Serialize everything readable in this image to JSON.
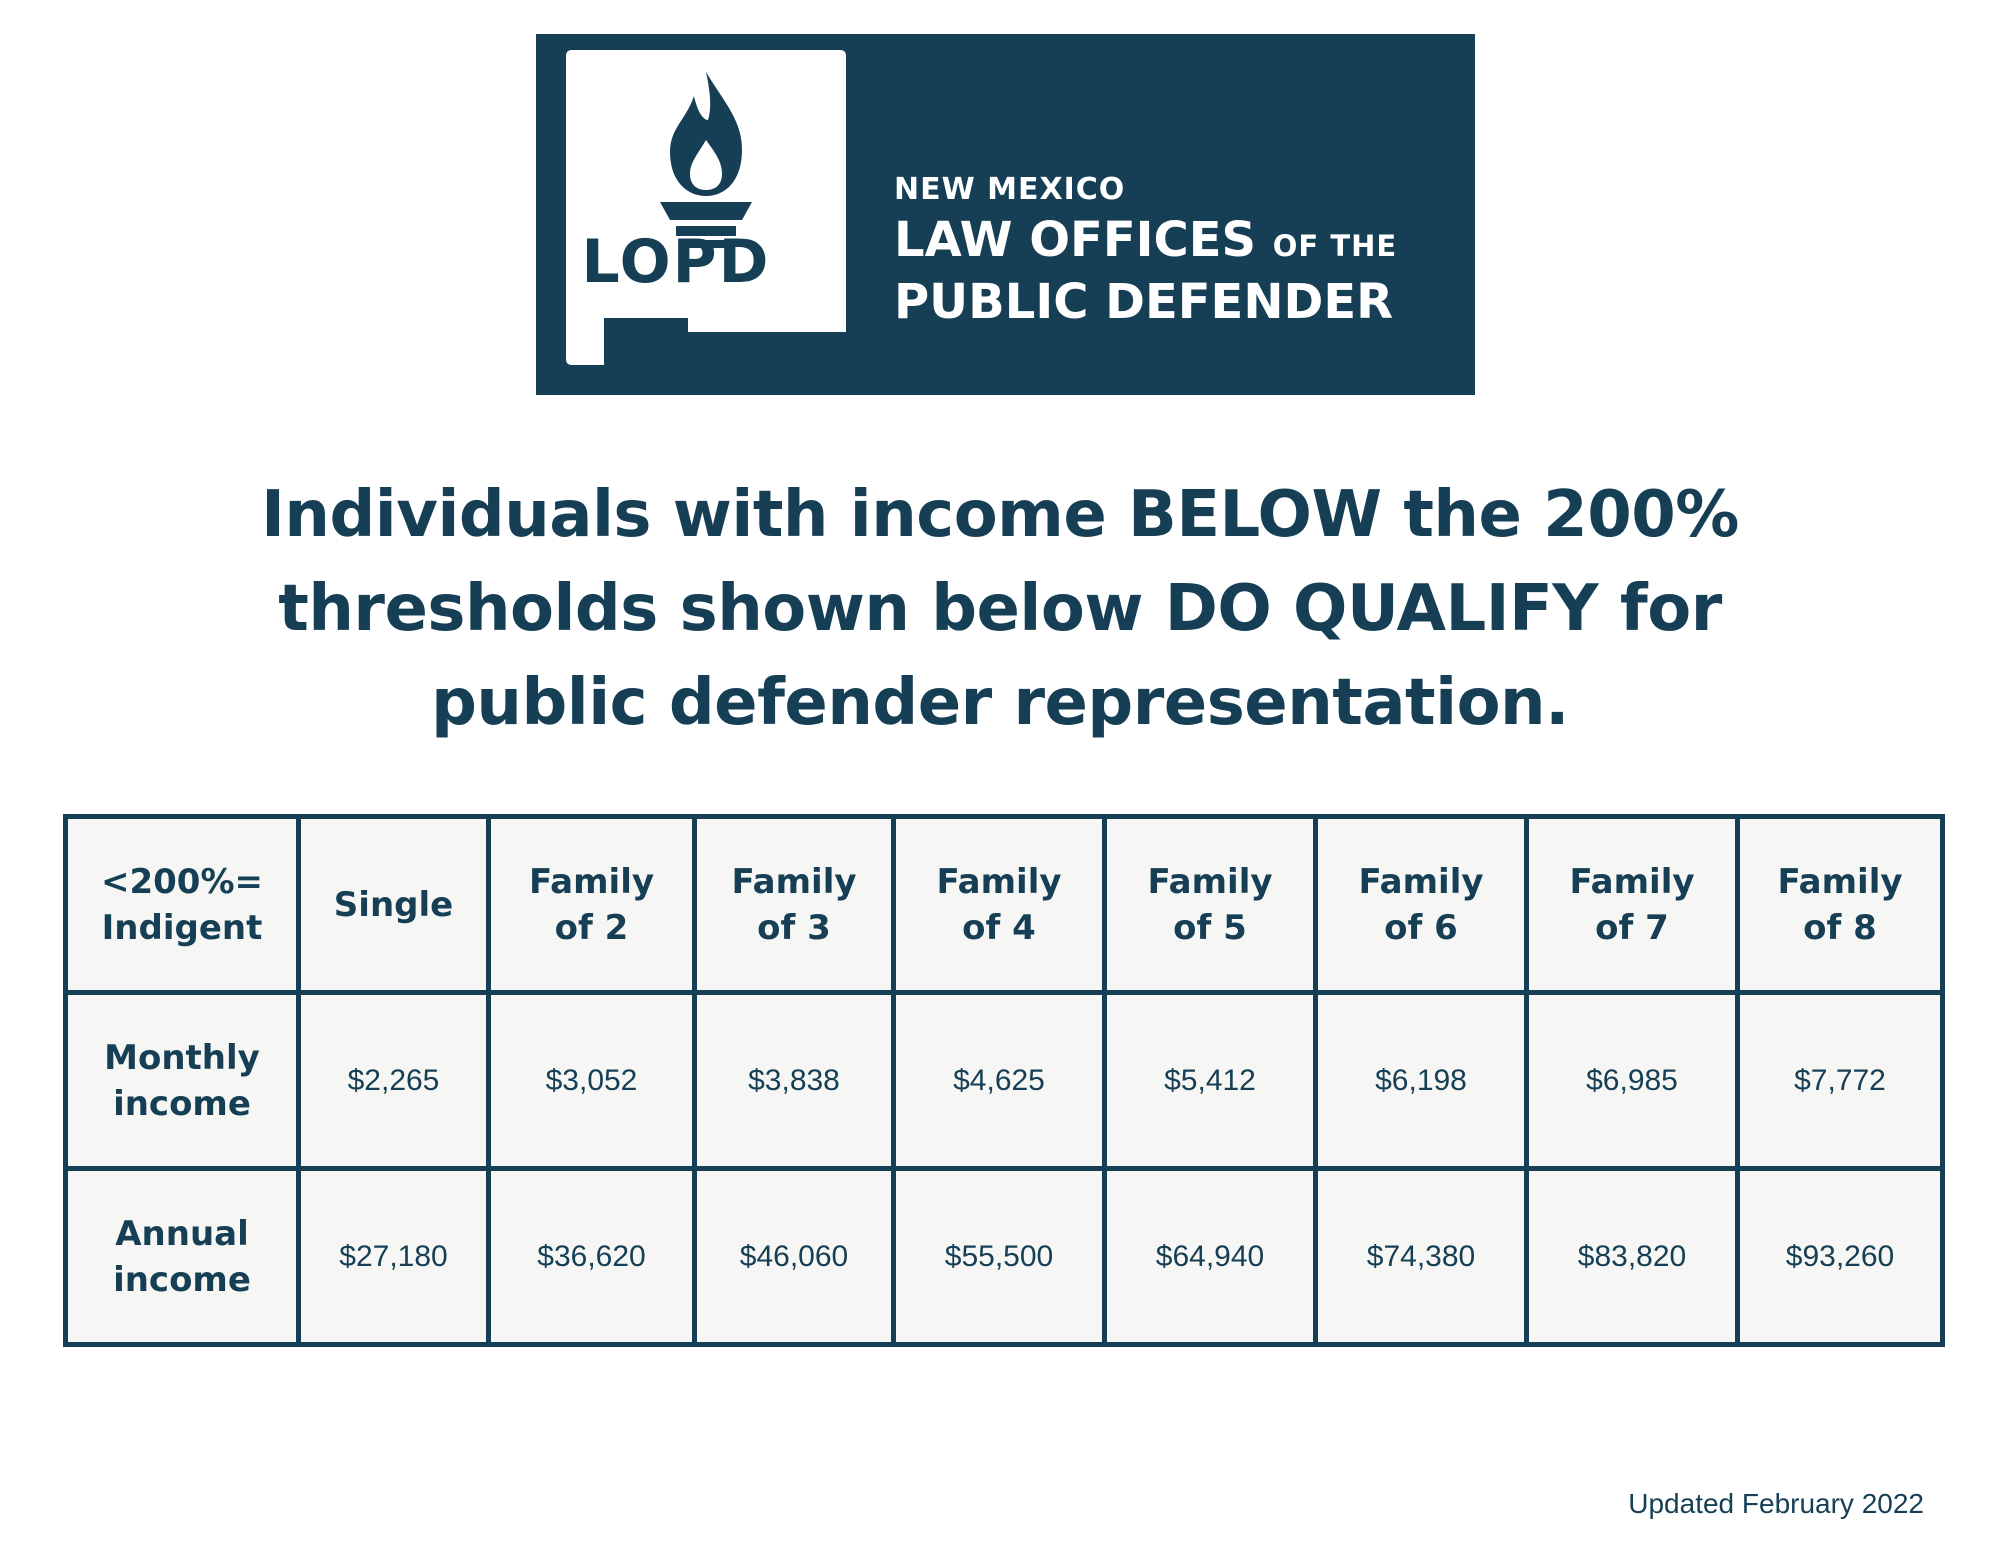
{
  "banner": {
    "logo_abbr": "LOPD",
    "line1": "NEW MEXICO",
    "line2_main": "LAW OFFICES",
    "line2_small": "OF THE",
    "line3": "PUBLIC DEFENDER"
  },
  "headline": {
    "lines": [
      "Individuals with income BELOW the 200%",
      "thresholds shown below DO QUALIFY for",
      "public defender representation."
    ]
  },
  "table": {
    "corner_label": [
      "<200%=",
      "Indigent"
    ],
    "columns": [
      [
        "Single"
      ],
      [
        "Family",
        "of 2"
      ],
      [
        "Family",
        "of 3"
      ],
      [
        "Family",
        "of 4"
      ],
      [
        "Family",
        "of 5"
      ],
      [
        "Family",
        "of 6"
      ],
      [
        "Family",
        "of 7"
      ],
      [
        "Family",
        "of 8"
      ]
    ],
    "rows": [
      {
        "label": [
          "Monthly",
          "income"
        ],
        "values": [
          "$2,265",
          "$3,052",
          "$3,838",
          "$4,625",
          "$5,412",
          "$6,198",
          "$6,985",
          "$7,772"
        ]
      },
      {
        "label": [
          "Annual",
          "income"
        ],
        "values": [
          "$27,180",
          "$36,620",
          "$46,060",
          "$55,500",
          "$64,940",
          "$74,380",
          "$83,820",
          "$93,260"
        ]
      }
    ]
  },
  "footer": {
    "updated": "Updated February 2022"
  },
  "colors": {
    "brand_navy": "#163f55",
    "cell_background": "#f6f6f4",
    "page_background": "#ffffff"
  },
  "icons": {
    "logo_mark": "torch-icon"
  }
}
